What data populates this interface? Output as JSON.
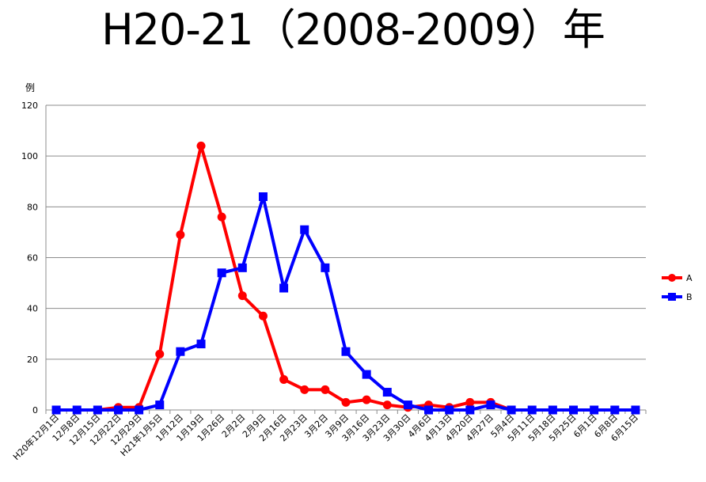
{
  "title": "H20-21（2008-2009）年",
  "chart_data": {
    "type": "line",
    "title": "H20-21（2008-2009）年",
    "ylabel": "例",
    "xlabel": "",
    "ylim": [
      0,
      120
    ],
    "yticks": [
      0,
      20,
      40,
      60,
      80,
      100,
      120
    ],
    "grid": true,
    "legend_position": "right",
    "categories": [
      "H20年12月1日",
      "12月8日",
      "12月15日",
      "12月22日",
      "12月29日",
      "H21年1月5日",
      "1月12日",
      "1月19日",
      "1月26日",
      "2月2日",
      "2月9日",
      "2月16日",
      "2月23日",
      "3月2日",
      "3月9日",
      "3月16日",
      "3月23日",
      "3月30日",
      "4月6日",
      "4月13日",
      "4月20日",
      "4月27日",
      "5月4日",
      "5月11日",
      "5月18日",
      "5月25日",
      "6月1日",
      "6月8日",
      "6月15日"
    ],
    "series": [
      {
        "name": "A",
        "color": "#ff0000",
        "marker": "circle",
        "values": [
          0,
          0,
          0,
          1,
          1,
          22,
          69,
          104,
          76,
          45,
          37,
          12,
          8,
          8,
          3,
          4,
          2,
          1,
          2,
          1,
          3,
          3,
          0,
          0,
          0,
          0,
          0,
          0,
          0
        ]
      },
      {
        "name": "B",
        "color": "#0000ff",
        "marker": "square",
        "values": [
          0,
          0,
          0,
          0,
          0,
          2,
          23,
          26,
          54,
          56,
          84,
          48,
          71,
          56,
          23,
          14,
          7,
          2,
          0,
          0,
          0,
          2,
          0,
          0,
          0,
          0,
          0,
          0,
          0
        ]
      }
    ]
  }
}
